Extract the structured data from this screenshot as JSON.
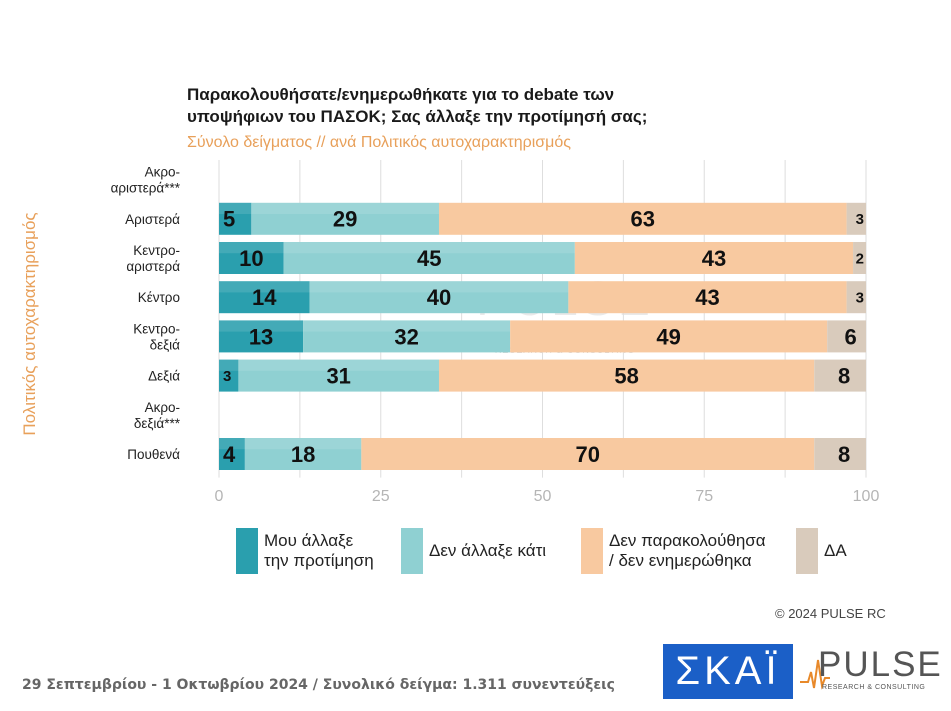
{
  "title_line1": "Παρακολουθήσατε/ενημερωθήκατε για το debate των",
  "title_line2": "υποψήφιων του ΠΑΣΟΚ;  Σας άλλαξε την προτίμησή σας;",
  "subtitle": "Σύνολο δείγματος // ανά Πολιτικός αυτοχαρακτηρισμός",
  "axis_title": "Πολιτικός αυτοχαρακτηρισμός",
  "copyright": "© 2024 PULSE RC",
  "footer": "29 Σεπτεμβρίου - 1 Οκτωβρίου 2024  /  Συνολικό δείγμα:  1.311 συνεντεύξεις",
  "logo_skai": "ΣΚΑΪ",
  "logo_pulse": "PULSE",
  "logo_pulse_sub": "RESEARCH & CONSULTING",
  "watermark": "PULSE",
  "watermark_sub": "RESEARCH & CONSULTING",
  "colors": {
    "changed": "#2a9fae",
    "not_changed": "#8fd0d2",
    "not_followed": "#f8c9a0",
    "dk": "#d9cbbc"
  },
  "chart_data": {
    "type": "bar",
    "orientation": "horizontal",
    "stacked": true,
    "categories": [
      "Ακρο-\nαριστερά***",
      "Αριστερά",
      "Κεντρο-\nαριστερά",
      "Κέντρο",
      "Κεντρο-\nδεξιά",
      "Δεξιά",
      "Ακρο-\nδεξιά***",
      "Πουθενά"
    ],
    "series": [
      {
        "name": "Μου άλλαξε\nτην προτίμηση",
        "color": "#2a9fae",
        "values": [
          null,
          5,
          10,
          14,
          13,
          3,
          null,
          4
        ]
      },
      {
        "name": "Δεν άλλαξε κάτι",
        "color": "#8fd0d2",
        "values": [
          null,
          29,
          45,
          40,
          32,
          31,
          null,
          18
        ]
      },
      {
        "name": "Δεν παρακολούθησα\n/ δεν ενημερώθηκα",
        "color": "#f8c9a0",
        "values": [
          null,
          63,
          43,
          43,
          49,
          58,
          null,
          70
        ]
      },
      {
        "name": "ΔΑ",
        "color": "#d9cbbc",
        "values": [
          null,
          3,
          2,
          3,
          6,
          8,
          null,
          8
        ]
      }
    ],
    "xlim": [
      0,
      100
    ],
    "xticks": [
      "0",
      "25",
      "50",
      "75",
      "100"
    ],
    "grid": true,
    "legend_position": "bottom"
  }
}
